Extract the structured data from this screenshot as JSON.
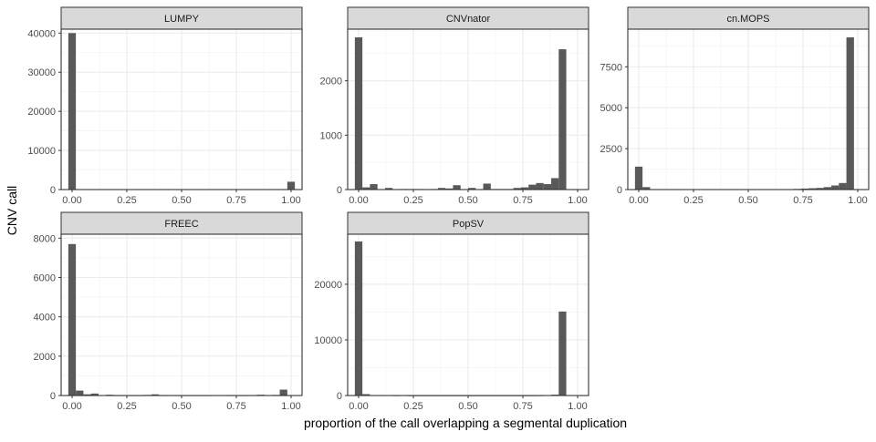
{
  "chart_data": {
    "type": "bar",
    "subtype": "faceted-histogram",
    "xlabel": "proportion of the call overlapping a segmental duplication",
    "ylabel": "CNV call",
    "bins": 30,
    "bin_centers": [
      0.0,
      0.0345,
      0.069,
      0.1034,
      0.1379,
      0.1724,
      0.2069,
      0.2414,
      0.2759,
      0.3103,
      0.3448,
      0.3793,
      0.4138,
      0.4483,
      0.4828,
      0.5172,
      0.5517,
      0.5862,
      0.6207,
      0.6552,
      0.6897,
      0.7241,
      0.7586,
      0.7931,
      0.8276,
      0.8621,
      0.8966,
      0.931,
      0.9655,
      1.0
    ],
    "x_ticks": [
      "0.00",
      "0.25",
      "0.50",
      "0.75",
      "1.00"
    ],
    "grid": true,
    "bar_color": "#595959",
    "strip_color": "#d9d9d9",
    "facets": [
      {
        "name": "LUMPY",
        "ylim": [
          0,
          41000
        ],
        "y_ticks": [
          0,
          10000,
          20000,
          30000,
          40000
        ],
        "values": [
          40000,
          0,
          0,
          0,
          0,
          0,
          0,
          0,
          0,
          0,
          0,
          0,
          0,
          0,
          0,
          0,
          0,
          0,
          0,
          0,
          0,
          0,
          0,
          0,
          0,
          0,
          0,
          0,
          0,
          2000
        ]
      },
      {
        "name": "CNVnator",
        "ylim": [
          0,
          2950
        ],
        "y_ticks": [
          0,
          1000,
          2000
        ],
        "values": [
          2800,
          40,
          100,
          0,
          30,
          0,
          10,
          10,
          10,
          0,
          10,
          30,
          20,
          80,
          0,
          30,
          0,
          110,
          10,
          10,
          10,
          30,
          40,
          90,
          120,
          100,
          210,
          2580,
          0,
          0
        ]
      },
      {
        "name": "cn.MOPS",
        "ylim": [
          0,
          9800
        ],
        "y_ticks": [
          0,
          2500,
          5000,
          7500
        ],
        "values": [
          1400,
          150,
          0,
          0,
          0,
          0,
          0,
          20,
          0,
          0,
          0,
          0,
          0,
          0,
          0,
          0,
          0,
          20,
          0,
          0,
          0,
          40,
          60,
          80,
          100,
          150,
          250,
          400,
          9300,
          0
        ]
      },
      {
        "name": "FREEC",
        "ylim": [
          0,
          8200
        ],
        "y_ticks": [
          0,
          2000,
          4000,
          6000,
          8000
        ],
        "values": [
          7700,
          250,
          60,
          100,
          0,
          40,
          10,
          10,
          10,
          10,
          30,
          60,
          10,
          0,
          10,
          10,
          10,
          10,
          10,
          0,
          0,
          10,
          10,
          10,
          0,
          40,
          0,
          30,
          300,
          0
        ]
      },
      {
        "name": "PopSV",
        "ylim": [
          0,
          29000
        ],
        "y_ticks": [
          0,
          10000,
          20000
        ],
        "values": [
          27700,
          250,
          80,
          60,
          0,
          30,
          0,
          20,
          20,
          20,
          20,
          20,
          20,
          20,
          20,
          20,
          20,
          20,
          20,
          20,
          20,
          20,
          20,
          20,
          30,
          50,
          150,
          15100,
          0,
          0
        ]
      }
    ]
  }
}
